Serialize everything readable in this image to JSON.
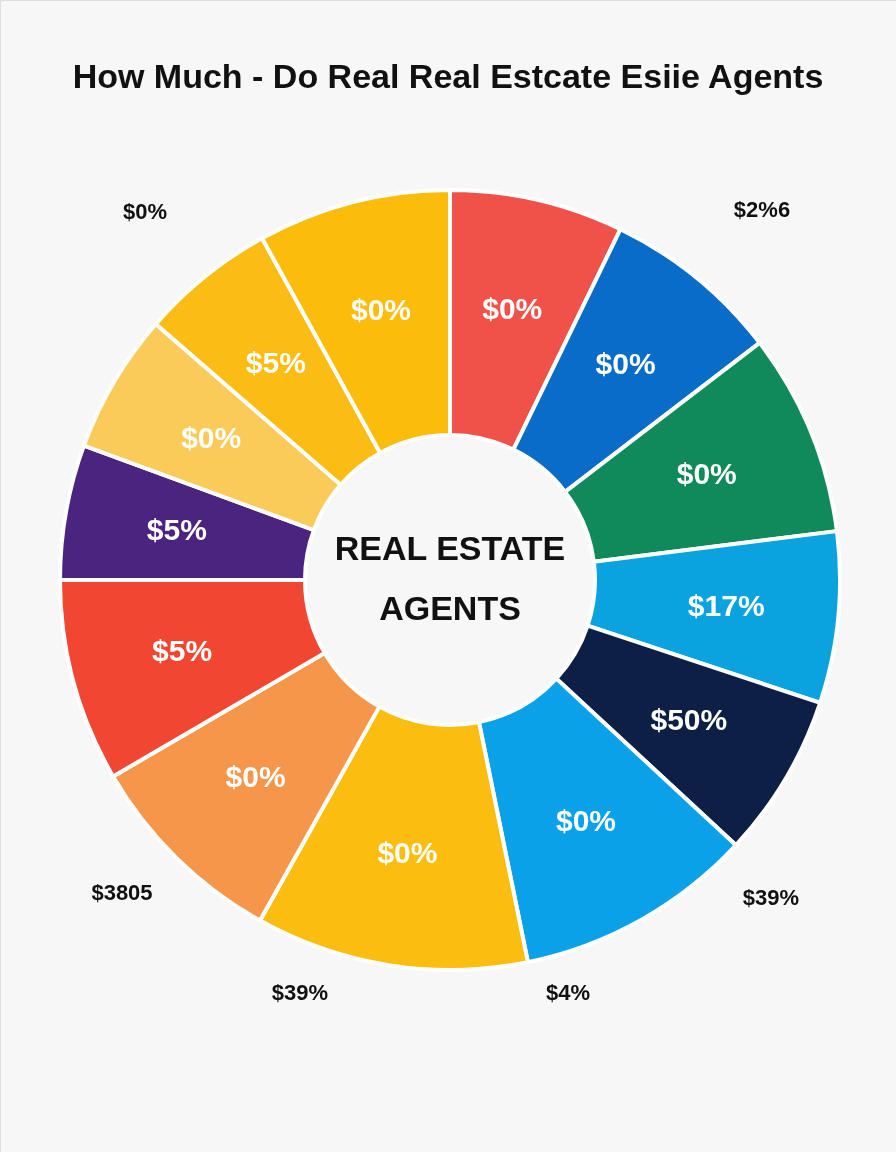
{
  "chart_data": {
    "type": "donut",
    "title": "How Much - Do Real Real Estcate Esiie Agents",
    "categories": [
      null,
      null,
      null,
      null,
      null,
      null,
      null,
      null,
      null,
      null,
      null,
      null,
      null
    ],
    "values": [
      7.2,
      7.4,
      8.4,
      7.1,
      6.8,
      9.9,
      11.3,
      8.5,
      8.4,
      5.6,
      5.8,
      5.6,
      8.0
    ],
    "colors": [
      "#f0524a",
      "#0a6cc9",
      "#108a5a",
      "#0aa3e0",
      "#0d1f44",
      "#0aa1e8",
      "#fbbd0f",
      "#f5964a",
      "#f04632",
      "#4b2480",
      "#fbcb5a",
      "#fbbc14",
      "#fbbc0c"
    ],
    "annotations": [
      "REAL ESTATE AGENTS",
      "$0%",
      "$0%",
      "$0%",
      "$17%",
      "$50%",
      "$0%",
      "$0%",
      "$0%",
      "$5%",
      "$5%",
      "$0%",
      "$5%",
      "$0%",
      "$0%",
      "$2%6",
      "$3805",
      "$39%",
      "$39%",
      "$4%"
    ]
  }
}
